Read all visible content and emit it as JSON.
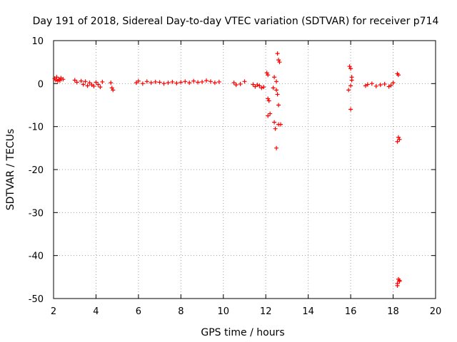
{
  "chart_data": {
    "type": "scatter",
    "title": "Day 191 of 2018, Sidereal Day-to-day VTEC variation (SDTVAR) for receiver p714",
    "xlabel": "GPS time / hours",
    "ylabel": "SDTVAR / TECUs",
    "xlim": [
      2,
      20
    ],
    "ylim": [
      -50,
      10
    ],
    "xticks": [
      2,
      4,
      6,
      8,
      10,
      12,
      14,
      16,
      18,
      20
    ],
    "yticks": [
      10,
      0,
      -10,
      -20,
      -30,
      -40,
      -50
    ],
    "grid": true,
    "marker": "plus",
    "color": "#ff0000",
    "series": [
      {
        "name": "SDTVAR",
        "x": [
          2.05,
          2.1,
          2.15,
          2.2,
          2.25,
          2.3,
          2.35,
          2.45,
          3.0,
          3.1,
          3.3,
          3.4,
          3.5,
          3.6,
          3.7,
          3.8,
          3.9,
          4.0,
          4.1,
          4.2,
          4.3,
          4.7,
          4.75,
          4.8,
          5.9,
          6.0,
          6.2,
          6.4,
          6.6,
          6.8,
          7.0,
          7.2,
          7.4,
          7.6,
          7.8,
          8.0,
          8.2,
          8.4,
          8.6,
          8.8,
          9.0,
          9.2,
          9.4,
          9.6,
          9.8,
          10.5,
          10.6,
          10.8,
          11.0,
          11.4,
          11.5,
          11.6,
          11.7,
          11.8,
          11.9,
          12.05,
          12.1,
          12.1,
          12.15,
          12.1,
          12.2,
          12.35,
          12.4,
          12.4,
          12.45,
          12.5,
          12.55,
          12.6,
          12.65,
          12.5,
          12.6,
          12.55,
          12.5,
          12.6,
          12.7,
          15.95,
          16.0,
          16.05,
          16.0,
          15.9,
          16.0,
          16.05,
          16.7,
          16.8,
          17.0,
          17.2,
          17.4,
          17.6,
          17.8,
          17.9,
          18.0,
          18.2,
          18.25,
          18.3,
          18.2,
          18.25,
          18.3,
          18.2,
          18.25,
          18.3,
          18.2
        ],
        "y": [
          1.2,
          0.8,
          1.5,
          0.6,
          1.0,
          0.7,
          1.3,
          1.0,
          0.8,
          0.3,
          0.6,
          -0.2,
          0.5,
          -0.5,
          0.2,
          -0.3,
          -0.6,
          0.3,
          -0.2,
          -0.8,
          0.4,
          0.2,
          -1.0,
          -1.5,
          0.2,
          0.6,
          0.0,
          0.5,
          0.2,
          0.4,
          0.3,
          0.0,
          0.2,
          0.4,
          0.1,
          0.3,
          0.5,
          0.2,
          0.6,
          0.3,
          0.4,
          0.7,
          0.5,
          0.2,
          0.4,
          0.2,
          -0.3,
          -0.1,
          0.5,
          -0.2,
          -0.7,
          -0.3,
          -0.5,
          -1.0,
          -0.8,
          2.5,
          2.0,
          -3.5,
          -4.0,
          -7.5,
          -7.0,
          -1.0,
          1.5,
          -9.0,
          -10.5,
          -15.0,
          7.0,
          5.5,
          5.0,
          -1.5,
          -5.0,
          -2.5,
          0.5,
          -9.5,
          -9.5,
          4.0,
          3.5,
          1.5,
          -0.5,
          -1.5,
          -6.0,
          0.8,
          -0.5,
          -0.2,
          0.0,
          -0.6,
          -0.3,
          -0.1,
          -0.7,
          -0.4,
          0.2,
          2.3,
          2.0,
          -13.0,
          -13.5,
          -12.5,
          -46.0,
          -46.5,
          -45.5,
          -45.8,
          -47.0
        ]
      }
    ]
  }
}
